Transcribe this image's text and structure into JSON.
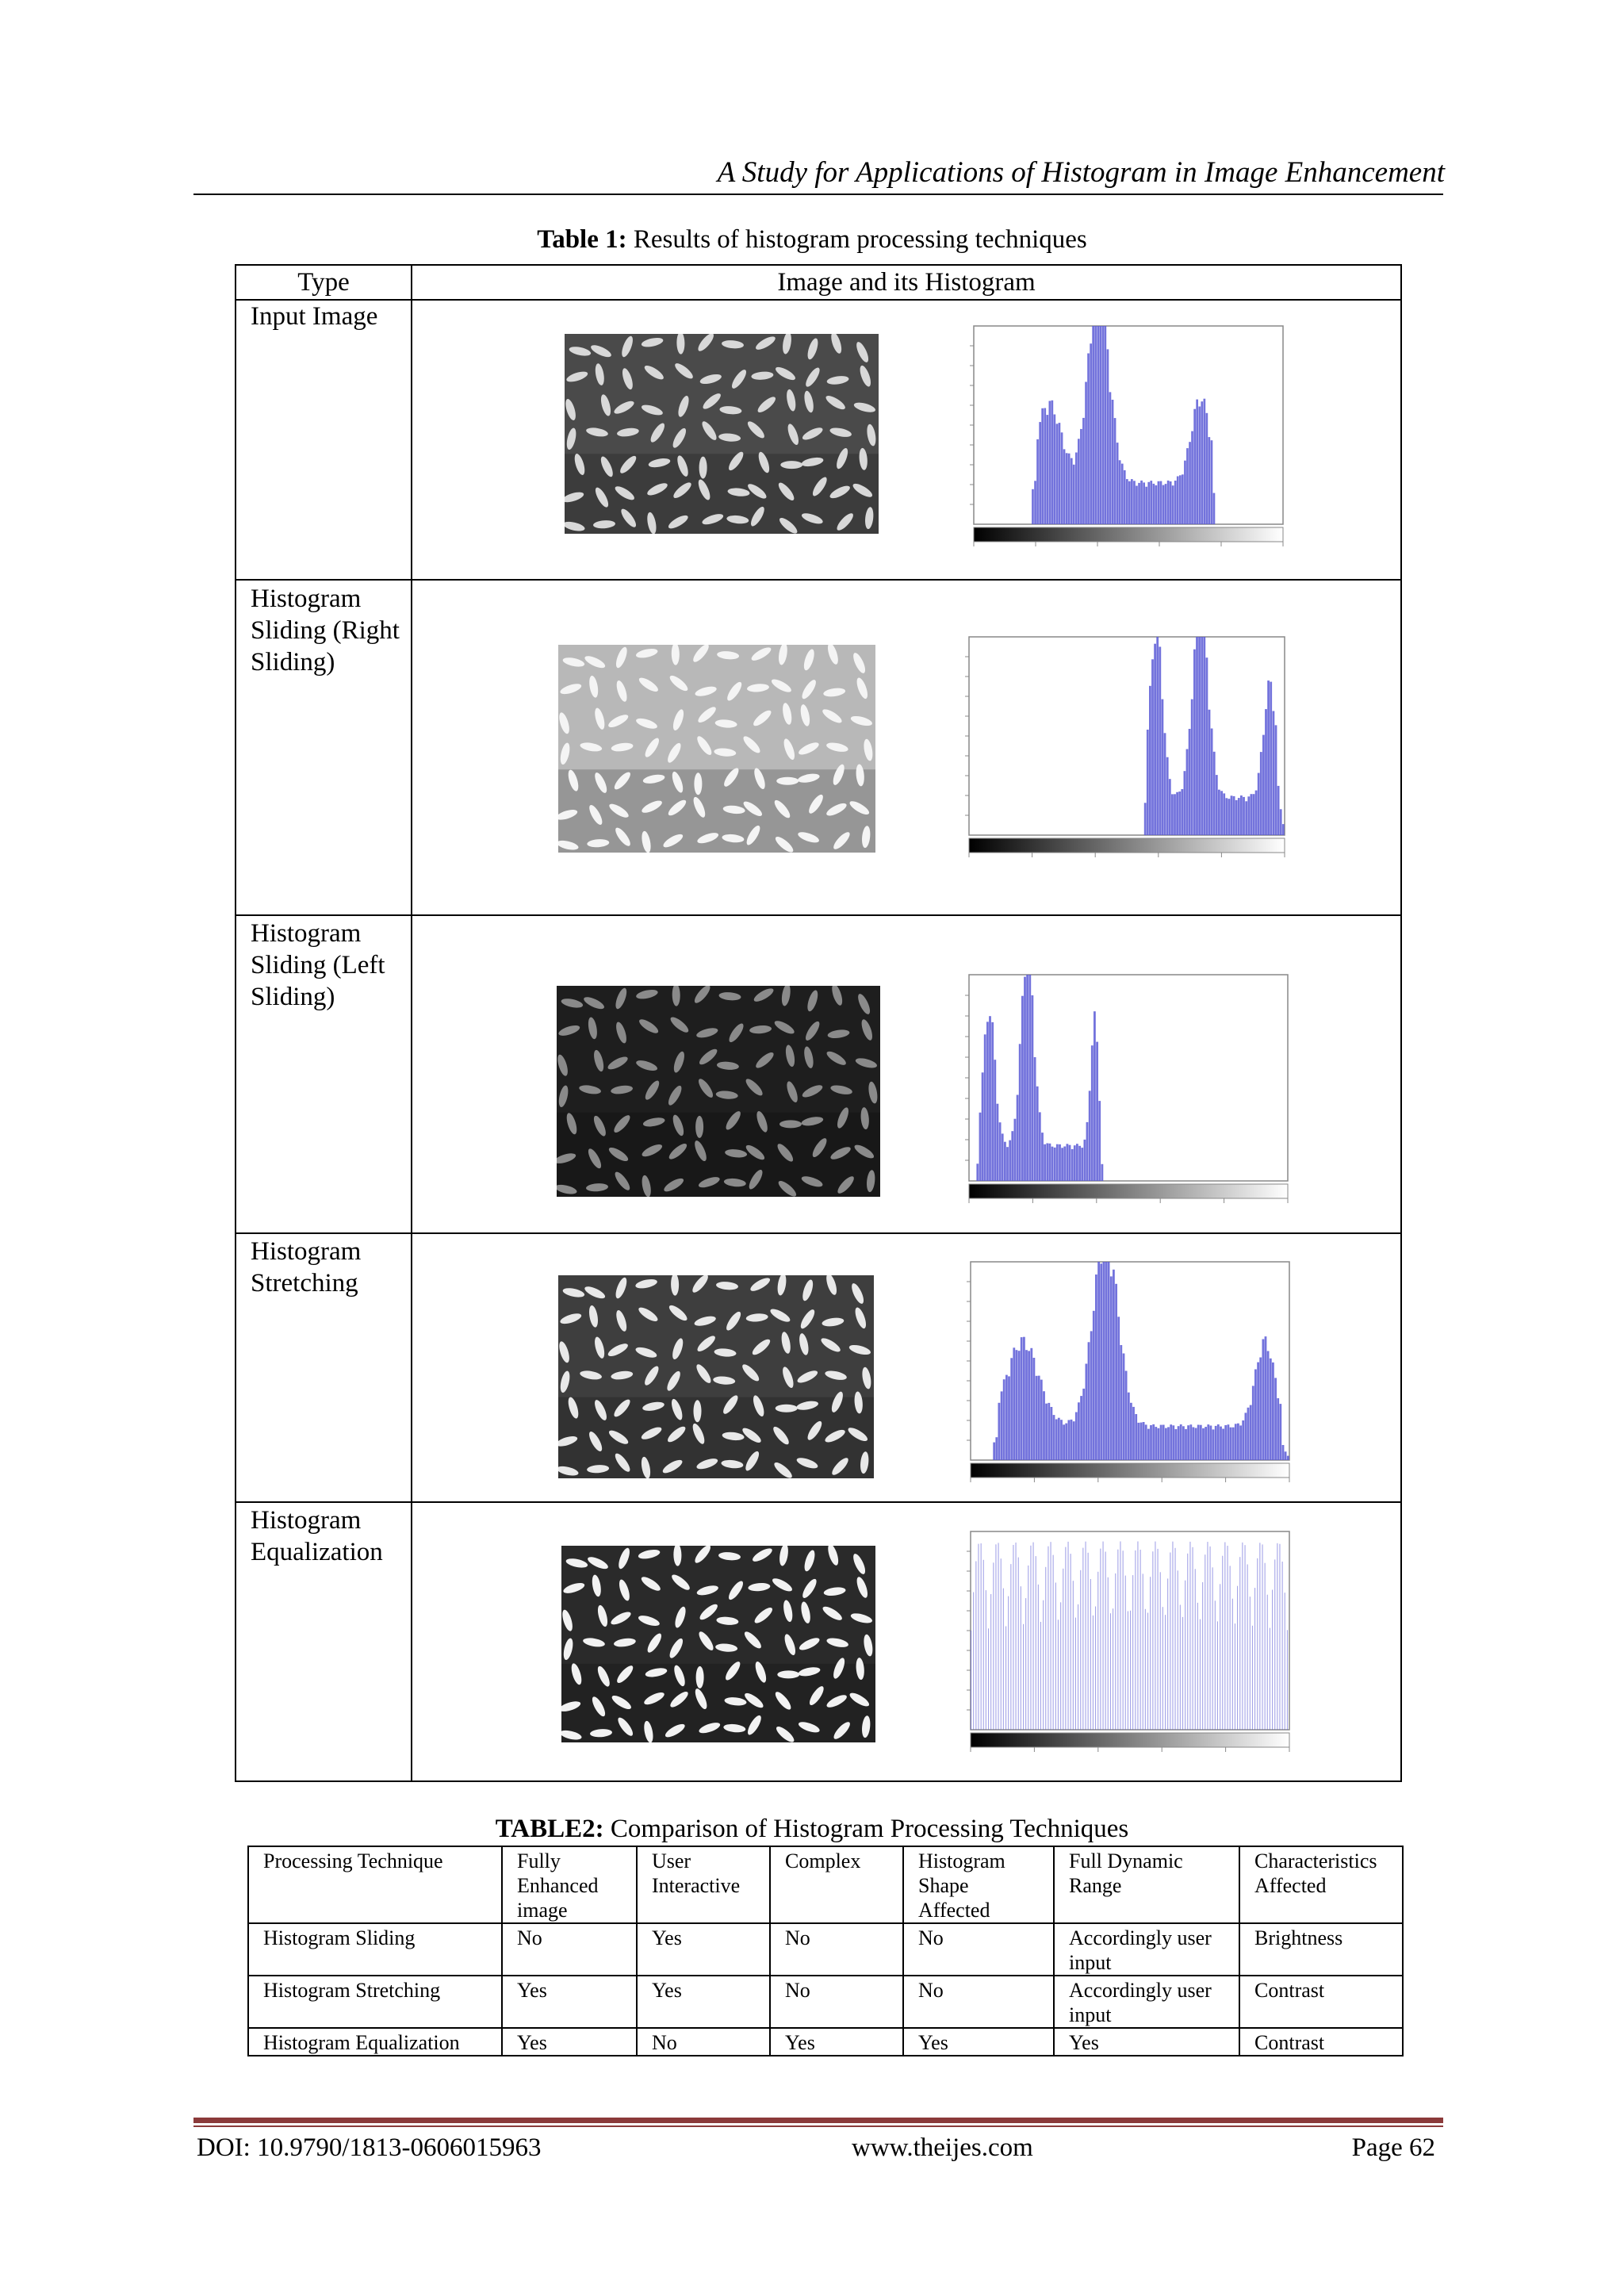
{
  "header": {
    "running_title": "A Study for Applications of Histogram in Image Enhancement"
  },
  "table1": {
    "caption_label": "Table 1:",
    "caption_text": " Results of histogram processing techniques",
    "col_type": "Type",
    "col_image": "Image and its Histogram",
    "rows": [
      {
        "label": "Input Image"
      },
      {
        "label": "Histogram Sliding (Right Sliding)"
      },
      {
        "label": "Histogram Sliding (Left Sliding)"
      },
      {
        "label": "Histogram Stretching"
      },
      {
        "label": "Histogram Equalization"
      }
    ]
  },
  "table2": {
    "caption_label": "TABLE2:",
    "caption_text": " Comparison of Histogram Processing Techniques",
    "headers": [
      "Processing Technique",
      "Fully Enhanced image",
      "User Interactive",
      "Complex",
      "Histogram Shape Affected",
      "Full Dynamic Range",
      "Characteristics Affected"
    ],
    "rows": [
      [
        "Histogram Sliding",
        "No",
        "Yes",
        "No",
        "No",
        "Accordingly user input",
        "Brightness"
      ],
      [
        "Histogram Stretching",
        "Yes",
        "Yes",
        "No",
        "No",
        "Accordingly user input",
        "Contrast"
      ],
      [
        "Histogram Equalization",
        "Yes",
        "No",
        "Yes",
        "Yes",
        "Yes",
        "Contrast"
      ]
    ]
  },
  "footer": {
    "doi": "DOI: 10.9790/1813-0606015963",
    "site": "www.theijes.com",
    "page": "Page 62"
  },
  "colors": {
    "histogram_fill": "#5a5ad6",
    "footer_rule": "#8b3a3a"
  }
}
